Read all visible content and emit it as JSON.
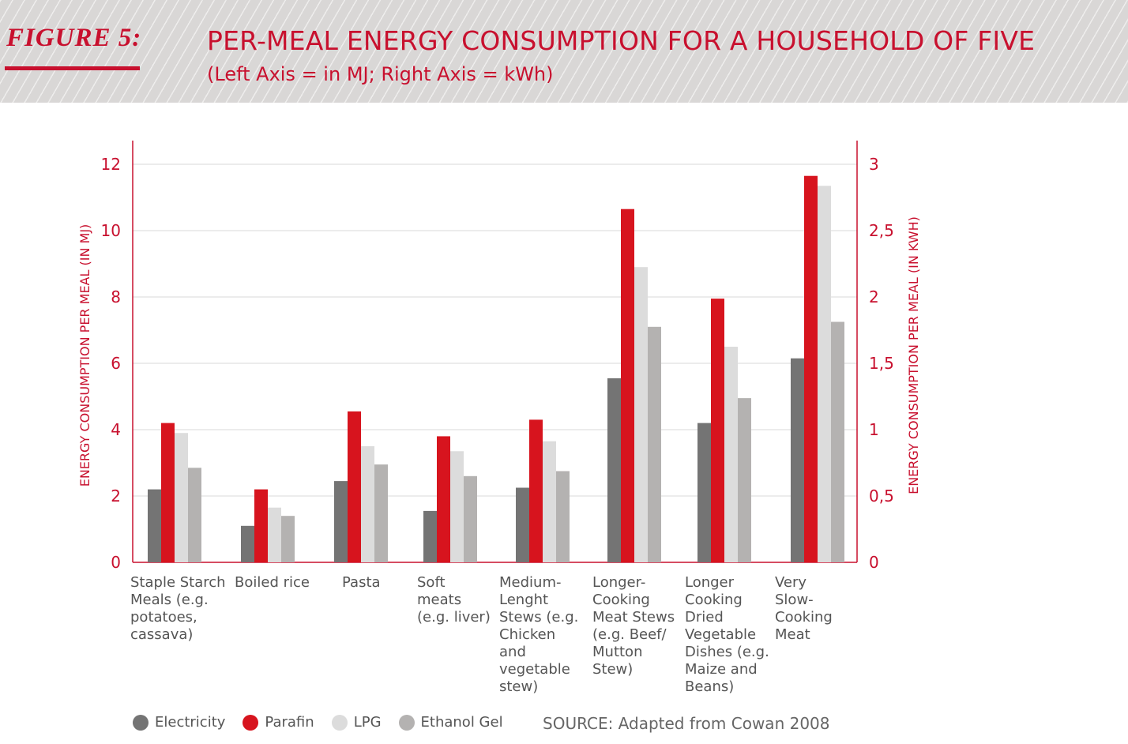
{
  "header": {
    "figure_label": "FIGURE 5:",
    "title": "PER-MEAL ENERGY CONSUMPTION FOR A HOUSEHOLD OF FIVE",
    "subtitle": "(Left Axis = in MJ; Right Axis = kWh)"
  },
  "source": "SOURCE: Adapted from Cowan 2008",
  "colors": {
    "accent": "#c8102e",
    "electricity": "#747474",
    "parafin": "#d7141e",
    "lpg": "#dcdcdc",
    "ethanol_gel": "#b4b2b1",
    "grid": "#d9d9d9"
  },
  "chart_data": {
    "type": "bar",
    "title": "PER-MEAL ENERGY CONSUMPTION FOR A HOUSEHOLD OF FIVE",
    "subtitle": "(Left Axis = in MJ; Right Axis = kWh)",
    "ylabel": "ENERGY CONSUMPTION PER MEAL (IN MJ)",
    "ylabel_right": "ENERGY CONSUMPTION PER MEAL (IN KWH)",
    "xlabel": "",
    "ylim": [
      0,
      12
    ],
    "ylim_right": [
      0,
      3
    ],
    "yticks": [
      "0",
      "2",
      "4",
      "6",
      "8",
      "10",
      "12"
    ],
    "yticks_right": [
      "0",
      "0,5",
      "1",
      "1,5",
      "2",
      "2,5",
      "3"
    ],
    "grid": true,
    "legend_position": "bottom-left",
    "categories": [
      [
        "Staple Starch",
        "Meals (e.g.",
        "potatoes,",
        "cassava)"
      ],
      [
        "Boiled rice"
      ],
      [
        "Pasta"
      ],
      [
        "Soft",
        "meats",
        "(e.g. liver)"
      ],
      [
        "Medium-",
        "Lenght",
        "Stews (e.g.",
        "Chicken",
        "and",
        "vegetable",
        "stew)"
      ],
      [
        "Longer-",
        "Cooking",
        "Meat Stews",
        "(e.g. Beef/",
        "Mutton",
        "Stew)"
      ],
      [
        "Longer",
        "Cooking",
        "Dried",
        "Vegetable",
        "Dishes (e.g.",
        "Maize and",
        "Beans)"
      ],
      [
        "Very",
        "Slow-",
        "Cooking",
        "Meat"
      ]
    ],
    "series": [
      {
        "name": "Electricity",
        "color": "#747474",
        "values": [
          2.2,
          1.1,
          2.45,
          1.55,
          2.25,
          5.55,
          4.2,
          6.15
        ]
      },
      {
        "name": "Parafin",
        "color": "#d7141e",
        "values": [
          4.2,
          2.2,
          4.55,
          3.8,
          4.3,
          10.65,
          7.95,
          11.65
        ]
      },
      {
        "name": "LPG",
        "color": "#dcdcdc",
        "values": [
          3.9,
          1.65,
          3.5,
          3.35,
          3.65,
          8.9,
          6.5,
          11.35
        ]
      },
      {
        "name": "Ethanol Gel",
        "color": "#b4b2b1",
        "values": [
          2.85,
          1.4,
          2.95,
          2.6,
          2.75,
          7.1,
          4.95,
          7.25
        ]
      }
    ]
  }
}
